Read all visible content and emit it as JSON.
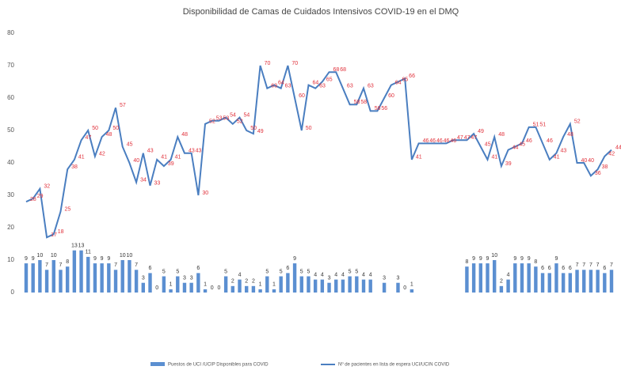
{
  "chart_data": {
    "type": "bar-line",
    "title": "Disponibilidad de Camas de Cuidados Intensivos COVID-19 en el DMQ",
    "ylim": [
      0,
      80
    ],
    "yticks": [
      0,
      10,
      20,
      30,
      40,
      50,
      60,
      70,
      80
    ],
    "grid": false,
    "legend": "bottom",
    "series": [
      {
        "name": "Puestos de UCI /UCIP Disponibles para COVID",
        "type": "bar",
        "color": "#5b8fd1",
        "label_color": "#333333",
        "values": [
          9,
          9,
          10,
          7,
          10,
          7,
          8,
          13,
          13,
          11,
          9,
          9,
          9,
          7,
          10,
          10,
          7,
          3,
          6,
          0,
          5,
          1,
          5,
          3,
          3,
          6,
          1,
          0,
          0,
          5,
          2,
          4,
          2,
          2,
          1,
          5,
          1,
          5,
          6,
          9,
          5,
          5,
          4,
          4,
          3,
          4,
          4,
          5,
          5,
          4,
          4,
          null,
          3,
          null,
          3,
          0,
          1,
          null,
          null,
          null,
          null,
          null,
          null,
          null,
          8,
          9,
          9,
          9,
          10,
          2,
          4,
          9,
          9,
          9,
          8,
          6,
          6,
          9,
          6,
          6,
          7,
          7,
          7,
          7,
          6,
          7
        ]
      },
      {
        "name": "Nº de pacientes en lista de espera UCI/UCIN COVID",
        "type": "line",
        "color": "#4a7ec0",
        "label_color": "#e0303a",
        "values": [
          28,
          29,
          32,
          17,
          18,
          25,
          38,
          41,
          47,
          50,
          42,
          48,
          50,
          57,
          45,
          40,
          34,
          43,
          33,
          41,
          39,
          41,
          48,
          43,
          43,
          30,
          52,
          53,
          53,
          54,
          52,
          54,
          50,
          49,
          70,
          63,
          64,
          63,
          70,
          60,
          50,
          64,
          63,
          65,
          68,
          68,
          63,
          58,
          58,
          63,
          56,
          56,
          60,
          64,
          65,
          66,
          41,
          46,
          46,
          46,
          46,
          46,
          47,
          47,
          47,
          49,
          45,
          41,
          48,
          39,
          44,
          45,
          46,
          51,
          51,
          46,
          41,
          43,
          48,
          52,
          40,
          40,
          36,
          38,
          42,
          44
        ]
      }
    ]
  }
}
